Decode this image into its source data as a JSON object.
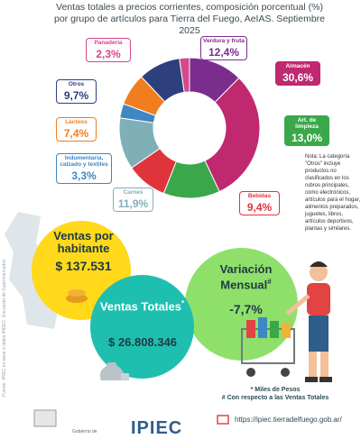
{
  "title": "Ventas totales a precios corrientes, composición porcentual (%) por grupo de artículos para Tierra del Fuego, AeIAS. Septiembre 2025",
  "side_note": "Fuente: IPIEC en base a datos INDEC. Encuesta de Supermercados",
  "chart_data": {
    "type": "pie",
    "categories": [
      "Verdura y fruta",
      "Almacén",
      "Art. de limpieza",
      "Bebidas",
      "Carnes",
      "Indumentaria, calzado y textiles",
      "Lácteos",
      "Otros",
      "Panadería"
    ],
    "values": [
      12.4,
      30.6,
      13.0,
      9.4,
      11.9,
      3.3,
      7.4,
      9.7,
      2.3
    ],
    "labels": [
      "12,4%",
      "30,6%",
      "13,0%",
      "9,4%",
      "11,9%",
      "3,3%",
      "7,4%",
      "9,7%",
      "2,3%"
    ],
    "colors": [
      "#7b2d8e",
      "#c0286f",
      "#3aa84a",
      "#e0343c",
      "#7fb0b8",
      "#3f86c4",
      "#f07d1e",
      "#2e3f7e",
      "#d6478b"
    ]
  },
  "note": "Nota: La categoría \"Otros\" incluye productos no clasificados en los rubros principales, como electrónicos, artículos para el hogar, alimentos preparados, juguetes, libros, artículos deportivos, plantas y similares.",
  "stats": {
    "ventas_por_habitante": {
      "label": "Ventas por habitante",
      "value": "$ 137.531"
    },
    "ventas_totales": {
      "label": "Ventas Totales",
      "mark": "*",
      "value": "$ 26.808.346"
    },
    "variacion_mensual": {
      "label": "Variación Mensual",
      "mark": "#",
      "value": "-7,7%"
    }
  },
  "footnotes": {
    "line1": "* Miles de Pesos",
    "line2": "# Con respecto a las Ventas Totales"
  },
  "footer": {
    "logo_text": "IPIEC",
    "gov_text": "Gobierno de",
    "url": "https://ipiec.tierradelfuego.gob.ar/"
  }
}
